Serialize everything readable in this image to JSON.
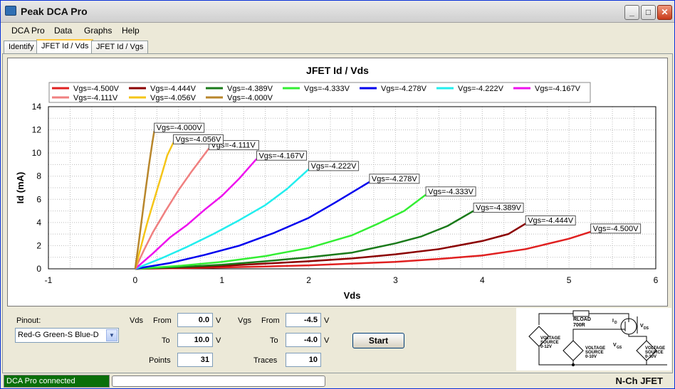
{
  "window": {
    "title": "Peak DCA Pro",
    "buttons": {
      "minimize": "_",
      "maximize": "□",
      "close": "✕"
    }
  },
  "menu": [
    "DCA Pro",
    "Data",
    "Graphs",
    "Help"
  ],
  "tabs": [
    {
      "label": "Identify",
      "active": false
    },
    {
      "label": "JFET Id / Vds",
      "active": true
    },
    {
      "label": "JFET Id / Vgs",
      "active": false
    }
  ],
  "chart_data": {
    "type": "line",
    "title": "JFET Id / Vds",
    "xlabel": "Vds",
    "ylabel": "Id (mA)",
    "xlim": [
      -1,
      6
    ],
    "ylim": [
      0,
      14
    ],
    "xticks": [
      "-1",
      "0",
      "1",
      "2",
      "3",
      "4",
      "5",
      "6"
    ],
    "yticks": [
      "0",
      "2",
      "4",
      "6",
      "8",
      "10",
      "12",
      "14"
    ],
    "grid": true,
    "legend_position": "top",
    "series": [
      {
        "name": "Vgs=-4.500V",
        "color": "#e02020",
        "x": [
          0,
          0.5,
          1,
          1.5,
          2,
          2.5,
          3,
          3.5,
          4,
          4.5,
          5,
          5.25
        ],
        "y": [
          0,
          0.05,
          0.12,
          0.2,
          0.3,
          0.45,
          0.6,
          0.85,
          1.15,
          1.7,
          2.6,
          3.2
        ]
      },
      {
        "name": "Vgs=-4.444V",
        "color": "#8b0000",
        "x": [
          0,
          0.5,
          1,
          1.5,
          2,
          2.5,
          3,
          3.5,
          4,
          4.3,
          4.5
        ],
        "y": [
          0,
          0.1,
          0.25,
          0.45,
          0.65,
          0.9,
          1.25,
          1.7,
          2.4,
          3.0,
          3.9
        ]
      },
      {
        "name": "Vgs=-4.389V",
        "color": "#1a7a1a",
        "x": [
          0,
          0.5,
          1,
          1.5,
          2,
          2.5,
          3,
          3.3,
          3.6,
          3.9
        ],
        "y": [
          0,
          0.15,
          0.35,
          0.65,
          1.0,
          1.4,
          2.2,
          2.8,
          3.7,
          5.0
        ]
      },
      {
        "name": "Vgs=-4.333V",
        "color": "#33ee33",
        "x": [
          0,
          0.5,
          1,
          1.5,
          2,
          2.5,
          2.8,
          3.1,
          3.35
        ],
        "y": [
          0,
          0.25,
          0.6,
          1.1,
          1.8,
          2.9,
          3.9,
          5.0,
          6.4
        ]
      },
      {
        "name": "Vgs=-4.278V",
        "color": "#0000ee",
        "x": [
          0,
          0.4,
          0.8,
          1.2,
          1.6,
          2.0,
          2.3,
          2.7
        ],
        "y": [
          0,
          0.5,
          1.2,
          2.0,
          3.1,
          4.4,
          5.7,
          7.5
        ]
      },
      {
        "name": "Vgs=-4.222V",
        "color": "#22eeee",
        "x": [
          0,
          0.3,
          0.6,
          0.9,
          1.2,
          1.5,
          1.75,
          2.0
        ],
        "y": [
          0,
          0.9,
          1.9,
          3.0,
          4.2,
          5.5,
          6.9,
          8.6
        ]
      },
      {
        "name": "Vgs=-4.167V",
        "color": "#ee11ee",
        "x": [
          0,
          0.2,
          0.4,
          0.6,
          0.8,
          1.0,
          1.2,
          1.4
        ],
        "y": [
          0,
          1.3,
          2.7,
          3.8,
          5.1,
          6.3,
          7.8,
          9.5
        ]
      },
      {
        "name": "Vgs=-4.111V",
        "color": "#f08080",
        "x": [
          0,
          0.1,
          0.2,
          0.35,
          0.5,
          0.65,
          0.85
        ],
        "y": [
          0,
          1.6,
          3.1,
          5.0,
          6.8,
          8.4,
          10.4
        ]
      },
      {
        "name": "Vgs=-4.056V",
        "color": "#f5c518",
        "x": [
          0,
          0.07,
          0.14,
          0.22,
          0.3,
          0.37,
          0.44
        ],
        "y": [
          0,
          2.0,
          4.0,
          6.0,
          8.0,
          9.8,
          10.9
        ]
      },
      {
        "name": "Vgs=-4.000V",
        "color": "#b8862b",
        "x": [
          0,
          0.04,
          0.08,
          0.12,
          0.16,
          0.2,
          0.22
        ],
        "y": [
          0,
          2.2,
          4.5,
          6.8,
          9.0,
          11.0,
          11.9
        ]
      }
    ]
  },
  "controls": {
    "pinout_label": "Pinout:",
    "pinout_value": "Red-G Green-S Blue-D",
    "vds_label": "Vds",
    "vgs_label": "Vgs",
    "from_label": "From",
    "to_label": "To",
    "unit_v": "V",
    "vds_from": "0.0",
    "vds_to": "10.0",
    "vgs_from": "-4.5",
    "vgs_to": "-4.0",
    "points_label": "Points",
    "points_value": "31",
    "traces_label": "Traces",
    "traces_value": "10",
    "start_label": "Start"
  },
  "circuit": {
    "rload": "RLOAD",
    "rload_value": "700R",
    "id_label": "I",
    "id_sub": "D",
    "vds_label": "V",
    "vds_sub": "DS",
    "vgs_label": "V",
    "vgs_sub": "GS",
    "src1": [
      "VOLTAGE",
      "SOURCE",
      "0-12V"
    ],
    "src2": [
      "VOLTAGE",
      "SOURCE",
      "0-10V"
    ],
    "src3": [
      "VOLTAGE",
      "SOURCE",
      "0-10V"
    ]
  },
  "status": {
    "connection": "DCA Pro connected",
    "device": "N-Ch JFET"
  }
}
